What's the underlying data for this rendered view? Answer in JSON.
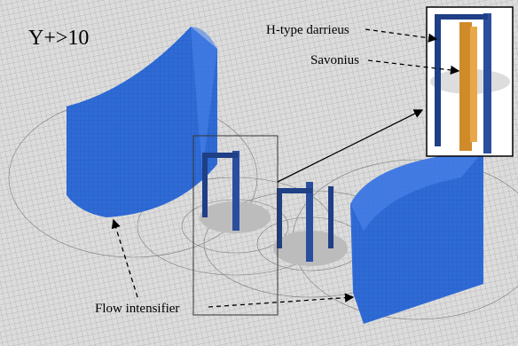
{
  "annotations": {
    "y_plus": "Y+>10",
    "h_type": "H-type darrieus",
    "savonius": "Savonius",
    "flow_intensifier": "Flow intensifier"
  }
}
